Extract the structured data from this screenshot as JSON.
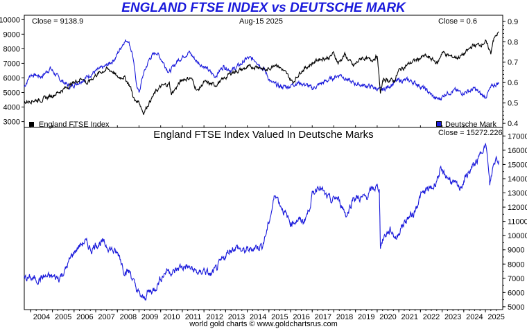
{
  "title": "ENGLAND FTSE INDEX vs DEUTSCHE MARK",
  "footer": "world gold charts © www.goldchartsrus.com",
  "colors": {
    "ftse": "#000000",
    "dm": "#1a1adb",
    "title": "#1a1adb"
  },
  "top_panel": {
    "close_left": "Close = 9138.9",
    "date": "Aug-15  2025",
    "close_right": "Close = 0.6",
    "legend_left": "England FTSE Index",
    "legend_right": "Deutsche Mark"
  },
  "bottom_panel": {
    "title": "England FTSE Index Valued In Deutsche Marks",
    "close": "Close = 15272.226"
  },
  "chart_data": [
    {
      "type": "line",
      "panel": "top",
      "x_ticks": [
        "2004",
        "2005",
        "2006",
        "2007",
        "2008",
        "2009",
        "2010",
        "2011",
        "2012",
        "2013",
        "2014",
        "2015",
        "2016",
        "2017",
        "2018",
        "2019",
        "2020",
        "2021",
        "2022",
        "2023",
        "2024",
        "2025"
      ],
      "y_left_ticks": [
        "10000",
        "9000",
        "8000",
        "7000",
        "6000",
        "5000",
        "4000",
        "3000"
      ],
      "y_left_range": [
        2600,
        10300
      ],
      "y_right_ticks": [
        "0.9",
        "0.8",
        "0.7",
        "0.6",
        "0.5",
        "0.4"
      ],
      "y_right_range": [
        0.38,
        0.93
      ],
      "series": [
        {
          "name": "England FTSE Index",
          "axis": "left",
          "points": [
            [
              2003.7,
              4300
            ],
            [
              2004.0,
              4450
            ],
            [
              2004.5,
              4500
            ],
            [
              2005.0,
              4800
            ],
            [
              2005.5,
              5200
            ],
            [
              2006.0,
              5700
            ],
            [
              2006.4,
              6000
            ],
            [
              2006.6,
              5600
            ],
            [
              2007.0,
              6200
            ],
            [
              2007.5,
              6600
            ],
            [
              2007.8,
              6450
            ],
            [
              2008.0,
              6000
            ],
            [
              2008.3,
              6100
            ],
            [
              2008.6,
              5400
            ],
            [
              2008.8,
              4400
            ],
            [
              2009.0,
              4400
            ],
            [
              2009.2,
              3600
            ],
            [
              2009.5,
              4400
            ],
            [
              2009.8,
              5100
            ],
            [
              2010.0,
              5400
            ],
            [
              2010.4,
              5600
            ],
            [
              2010.5,
              4900
            ],
            [
              2010.8,
              5500
            ],
            [
              2011.0,
              5900
            ],
            [
              2011.4,
              6000
            ],
            [
              2011.7,
              5100
            ],
            [
              2012.0,
              5700
            ],
            [
              2012.5,
              5500
            ],
            [
              2012.9,
              5900
            ],
            [
              2013.3,
              6400
            ],
            [
              2013.6,
              6500
            ],
            [
              2014.0,
              6700
            ],
            [
              2014.5,
              6800
            ],
            [
              2014.9,
              6500
            ],
            [
              2015.3,
              7000
            ],
            [
              2015.6,
              6600
            ],
            [
              2015.9,
              6100
            ],
            [
              2016.1,
              5700
            ],
            [
              2016.5,
              6500
            ],
            [
              2016.9,
              6900
            ],
            [
              2017.3,
              7300
            ],
            [
              2017.8,
              7400
            ],
            [
              2018.0,
              7700
            ],
            [
              2018.2,
              7000
            ],
            [
              2018.5,
              7600
            ],
            [
              2018.9,
              6800
            ],
            [
              2019.3,
              7400
            ],
            [
              2019.7,
              7200
            ],
            [
              2020.0,
              7500
            ],
            [
              2020.15,
              5000
            ],
            [
              2020.3,
              5900
            ],
            [
              2020.8,
              5800
            ],
            [
              2021.0,
              6500
            ],
            [
              2021.5,
              7000
            ],
            [
              2021.9,
              7300
            ],
            [
              2022.2,
              7500
            ],
            [
              2022.5,
              7300
            ],
            [
              2022.8,
              7000
            ],
            [
              2023.0,
              7800
            ],
            [
              2023.3,
              7500
            ],
            [
              2023.7,
              7400
            ],
            [
              2024.0,
              7600
            ],
            [
              2024.4,
              8200
            ],
            [
              2024.8,
              8300
            ],
            [
              2025.0,
              8500
            ],
            [
              2025.25,
              7700
            ],
            [
              2025.35,
              8600
            ],
            [
              2025.62,
              9139
            ]
          ]
        },
        {
          "name": "Deutsche Mark",
          "axis": "right",
          "points": [
            [
              2003.7,
              0.58
            ],
            [
              2004.0,
              0.64
            ],
            [
              2004.5,
              0.63
            ],
            [
              2004.9,
              0.67
            ],
            [
              2005.3,
              0.62
            ],
            [
              2005.8,
              0.58
            ],
            [
              2006.0,
              0.59
            ],
            [
              2006.5,
              0.62
            ],
            [
              2006.9,
              0.65
            ],
            [
              2007.3,
              0.67
            ],
            [
              2007.6,
              0.69
            ],
            [
              2007.9,
              0.72
            ],
            [
              2008.3,
              0.8
            ],
            [
              2008.5,
              0.81
            ],
            [
              2008.7,
              0.74
            ],
            [
              2008.85,
              0.61
            ],
            [
              2009.0,
              0.55
            ],
            [
              2009.2,
              0.64
            ],
            [
              2009.5,
              0.72
            ],
            [
              2009.8,
              0.75
            ],
            [
              2010.0,
              0.72
            ],
            [
              2010.4,
              0.65
            ],
            [
              2010.8,
              0.71
            ],
            [
              2011.3,
              0.75
            ],
            [
              2011.7,
              0.7
            ],
            [
              2012.0,
              0.68
            ],
            [
              2012.5,
              0.63
            ],
            [
              2012.9,
              0.68
            ],
            [
              2013.3,
              0.66
            ],
            [
              2013.7,
              0.69
            ],
            [
              2014.0,
              0.72
            ],
            [
              2014.4,
              0.71
            ],
            [
              2014.8,
              0.66
            ],
            [
              2015.1,
              0.6
            ],
            [
              2015.5,
              0.58
            ],
            [
              2015.9,
              0.58
            ],
            [
              2016.3,
              0.6
            ],
            [
              2016.7,
              0.59
            ],
            [
              2017.0,
              0.57
            ],
            [
              2017.5,
              0.6
            ],
            [
              2017.9,
              0.62
            ],
            [
              2018.3,
              0.64
            ],
            [
              2018.8,
              0.6
            ],
            [
              2019.2,
              0.59
            ],
            [
              2019.7,
              0.58
            ],
            [
              2020.0,
              0.57
            ],
            [
              2020.2,
              0.56
            ],
            [
              2020.5,
              0.58
            ],
            [
              2020.8,
              0.6
            ],
            [
              2021.0,
              0.61
            ],
            [
              2021.5,
              0.61
            ],
            [
              2021.9,
              0.59
            ],
            [
              2022.3,
              0.56
            ],
            [
              2022.7,
              0.52
            ],
            [
              2022.9,
              0.52
            ],
            [
              2023.2,
              0.55
            ],
            [
              2023.6,
              0.56
            ],
            [
              2023.9,
              0.55
            ],
            [
              2024.3,
              0.56
            ],
            [
              2024.5,
              0.57
            ],
            [
              2024.8,
              0.54
            ],
            [
              2025.0,
              0.53
            ],
            [
              2025.3,
              0.58
            ],
            [
              2025.62,
              0.6
            ]
          ]
        }
      ]
    },
    {
      "type": "line",
      "panel": "bottom",
      "title": "England FTSE Index Valued In Deutsche Marks",
      "y_ticks": [
        "17000",
        "16000",
        "15000",
        "14000",
        "13000",
        "12000",
        "11000",
        "10000",
        "9000",
        "8000",
        "7000",
        "6000",
        "5000"
      ],
      "y_range": [
        4800,
        17600
      ],
      "series": [
        {
          "name": "England FTSE Index Valued In Deutsche Marks",
          "points": [
            [
              2003.7,
              7000
            ],
            [
              2004.0,
              7000
            ],
            [
              2004.3,
              6900
            ],
            [
              2004.6,
              7100
            ],
            [
              2005.0,
              7100
            ],
            [
              2005.3,
              7000
            ],
            [
              2005.6,
              7600
            ],
            [
              2005.9,
              8600
            ],
            [
              2006.2,
              9200
            ],
            [
              2006.5,
              9600
            ],
            [
              2006.8,
              9000
            ],
            [
              2007.0,
              9400
            ],
            [
              2007.3,
              9500
            ],
            [
              2007.6,
              9200
            ],
            [
              2007.9,
              8800
            ],
            [
              2008.1,
              8600
            ],
            [
              2008.3,
              7600
            ],
            [
              2008.6,
              7400
            ],
            [
              2008.8,
              6500
            ],
            [
              2009.0,
              5900
            ],
            [
              2009.2,
              5500
            ],
            [
              2009.4,
              6000
            ],
            [
              2009.7,
              6200
            ],
            [
              2010.0,
              7000
            ],
            [
              2010.3,
              7600
            ],
            [
              2010.6,
              7400
            ],
            [
              2010.9,
              7800
            ],
            [
              2011.2,
              7800
            ],
            [
              2011.5,
              7600
            ],
            [
              2011.8,
              7300
            ],
            [
              2012.0,
              7600
            ],
            [
              2012.3,
              7200
            ],
            [
              2012.6,
              7700
            ],
            [
              2012.9,
              8400
            ],
            [
              2013.2,
              9000
            ],
            [
              2013.5,
              9200
            ],
            [
              2013.8,
              8900
            ],
            [
              2014.1,
              9000
            ],
            [
              2014.4,
              9200
            ],
            [
              2014.7,
              9300
            ],
            [
              2014.9,
              10300
            ],
            [
              2015.1,
              11600
            ],
            [
              2015.3,
              13000
            ],
            [
              2015.5,
              12300
            ],
            [
              2015.8,
              11400
            ],
            [
              2016.0,
              10900
            ],
            [
              2016.3,
              11100
            ],
            [
              2016.6,
              11000
            ],
            [
              2016.8,
              11600
            ],
            [
              2017.0,
              12800
            ],
            [
              2017.3,
              13600
            ],
            [
              2017.6,
              12800
            ],
            [
              2017.9,
              12400
            ],
            [
              2018.1,
              12700
            ],
            [
              2018.3,
              12300
            ],
            [
              2018.6,
              11400
            ],
            [
              2018.9,
              12700
            ],
            [
              2019.2,
              12600
            ],
            [
              2019.5,
              12700
            ],
            [
              2019.8,
              13300
            ],
            [
              2020.0,
              13400
            ],
            [
              2020.1,
              13300
            ],
            [
              2020.15,
              9300
            ],
            [
              2020.35,
              10000
            ],
            [
              2020.6,
              10400
            ],
            [
              2020.9,
              9800
            ],
            [
              2021.1,
              10600
            ],
            [
              2021.4,
              11200
            ],
            [
              2021.7,
              11600
            ],
            [
              2022.0,
              12800
            ],
            [
              2022.3,
              13200
            ],
            [
              2022.6,
              13400
            ],
            [
              2022.9,
              14500
            ],
            [
              2023.2,
              14200
            ],
            [
              2023.5,
              13700
            ],
            [
              2023.8,
              13300
            ],
            [
              2024.1,
              14100
            ],
            [
              2024.4,
              14800
            ],
            [
              2024.7,
              15400
            ],
            [
              2024.9,
              16300
            ],
            [
              2025.05,
              16200
            ],
            [
              2025.2,
              13500
            ],
            [
              2025.35,
              14800
            ],
            [
              2025.5,
              15500
            ],
            [
              2025.62,
              15272
            ]
          ]
        }
      ]
    }
  ]
}
